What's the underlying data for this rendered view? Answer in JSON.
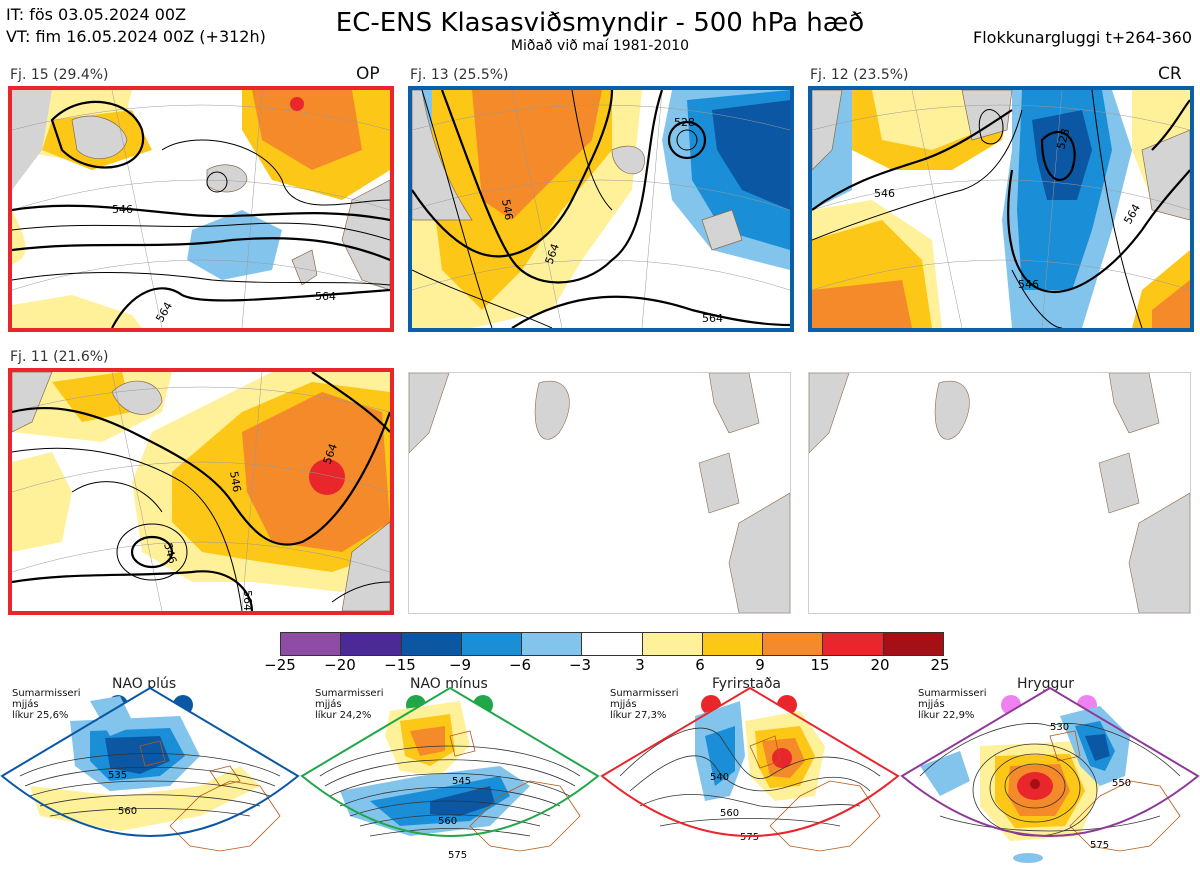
{
  "header": {
    "init_time": "IT: fös 03.05.2024 00Z",
    "valid_time": "VT: fim 16.05.2024 00Z  (+312h)",
    "title": "EC-ENS Klasasviðsmyndir - 500 hPa hæð",
    "subtitle": "Miðað við maí 1981-2010",
    "window": "Flokkunargluggi t+264-360"
  },
  "panels": [
    {
      "label": "Fj. 15 (29.4%)",
      "tag": "OP",
      "frame_color": "#e8262b",
      "contours": [
        "546",
        "564",
        "564"
      ]
    },
    {
      "label": "Fj. 13 (25.5%)",
      "tag": "",
      "frame_color": "#0b5ea8",
      "contours": [
        "528",
        "546",
        "564",
        "564"
      ]
    },
    {
      "label": "Fj. 12 (23.5%)",
      "tag": "CR",
      "frame_color": "#0b5ea8",
      "contours": [
        "528",
        "546",
        "546",
        "564"
      ]
    },
    {
      "label": "Fj. 11 (21.6%)",
      "tag": "",
      "frame_color": "#e8262b",
      "contours": [
        "546",
        "564",
        "546",
        "564"
      ]
    },
    {
      "label": "",
      "tag": "",
      "frame_color": "#cfcfcf",
      "contours": []
    },
    {
      "label": "",
      "tag": "",
      "frame_color": "#cfcfcf",
      "contours": []
    }
  ],
  "colorbar": {
    "ticks": [
      "−25",
      "−20",
      "−15",
      "−9",
      "−6",
      "−3",
      "3",
      "6",
      "9",
      "15",
      "20",
      "25"
    ],
    "colors": [
      "#8e4ca5",
      "#4b2a98",
      "#0b57a4",
      "#1a8fd8",
      "#83c4ec",
      "#ffffff",
      "#fff19a",
      "#fcc716",
      "#f48a2a",
      "#e8262b",
      "#a50f15"
    ]
  },
  "regimes": [
    {
      "title": "NAO plús",
      "note1": "Sumarmisseri",
      "note2": "mjjás",
      "note3": "líkur 25,6%",
      "color": "#0b57a4",
      "frame": "#0b57a4",
      "labels": [
        "535",
        "560"
      ]
    },
    {
      "title": "NAO mínus",
      "note1": "Sumarmisseri",
      "note2": "mjjás",
      "note3": "líkur 24,2%",
      "color": "#21a64a",
      "frame": "#21a64a",
      "labels": [
        "545",
        "560",
        "575"
      ]
    },
    {
      "title": "Fyrirstaða",
      "note1": "Sumarmisseri",
      "note2": "mjjás",
      "note3": "líkur 27,3%",
      "color": "#e8262b",
      "frame": "#e8262b",
      "labels": [
        "540",
        "560",
        "575"
      ]
    },
    {
      "title": "Hryggur",
      "note1": "Sumarmisseri",
      "note2": "mjjás",
      "note3": "líkur 22,9%",
      "color": "#ee82ee",
      "frame": "#8e3a98",
      "labels": [
        "530",
        "550",
        "575"
      ]
    }
  ]
}
